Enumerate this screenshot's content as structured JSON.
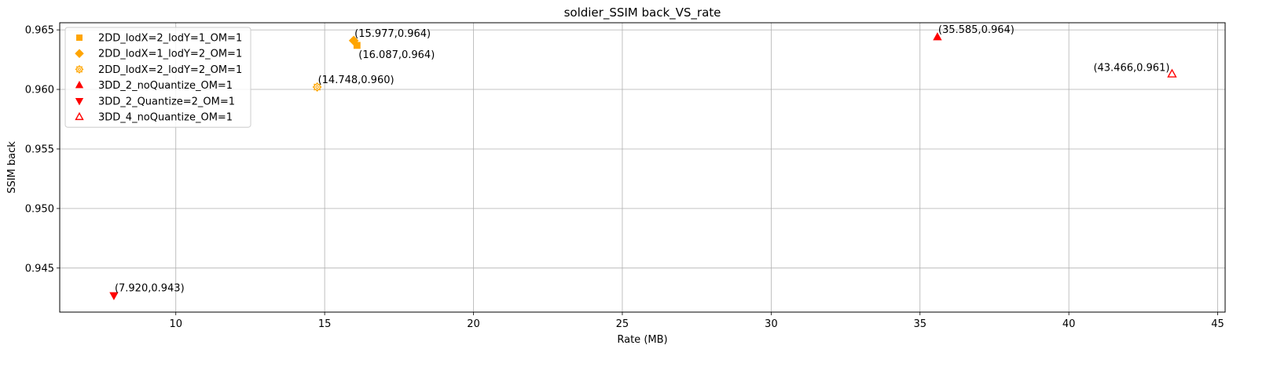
{
  "chart_data": {
    "type": "scatter",
    "title": "soldier_SSIM back_VS_rate",
    "xlabel": "Rate (MB)",
    "ylabel": "SSIM back",
    "xlim": [
      6.1,
      45.25
    ],
    "ylim": [
      0.9413,
      0.9656
    ],
    "xticks": [
      10,
      15,
      20,
      25,
      30,
      35,
      40,
      45
    ],
    "yticks": [
      0.945,
      0.95,
      0.955,
      0.96,
      0.965
    ],
    "ytick_labels": [
      "0.945",
      "0.950",
      "0.955",
      "0.960",
      "0.965"
    ],
    "grid": true,
    "legend_position": "top-left",
    "series": [
      {
        "name": "2DD_lodX=2_lodY=1_OM=1",
        "marker": "square",
        "color": "#FFA500",
        "filled": true,
        "points": [
          {
            "x": 16.087,
            "y": 0.9637,
            "label": "(16.087,0.964)",
            "label_pos": "below-right"
          }
        ]
      },
      {
        "name": "2DD_lodX=1_lodY=2_OM=1",
        "marker": "diamond",
        "color": "#FFA500",
        "filled": true,
        "points": [
          {
            "x": 15.977,
            "y": 0.9641,
            "label": "(15.977,0.964)",
            "label_pos": "above-right"
          }
        ]
      },
      {
        "name": "2DD_lodX=2_lodY=2_OM=1",
        "marker": "gear",
        "color": "#FFA500",
        "filled": false,
        "points": [
          {
            "x": 14.748,
            "y": 0.9602,
            "label": "(14.748,0.960)",
            "label_pos": "above-right"
          }
        ]
      },
      {
        "name": "3DD_2_noQuantize_OM=1",
        "marker": "triangle-up",
        "color": "#FF0000",
        "filled": true,
        "points": [
          {
            "x": 35.585,
            "y": 0.9644,
            "label": "(35.585,0.964)",
            "label_pos": "above-right"
          }
        ]
      },
      {
        "name": "3DD_2_Quantize=2_OM=1",
        "marker": "triangle-down",
        "color": "#FF0000",
        "filled": true,
        "points": [
          {
            "x": 7.92,
            "y": 0.9427,
            "label": "(7.920,0.943)",
            "label_pos": "above-right"
          }
        ]
      },
      {
        "name": "3DD_4_noQuantize_OM=1",
        "marker": "triangle-up",
        "color": "#FF0000",
        "filled": false,
        "points": [
          {
            "x": 43.466,
            "y": 0.9613,
            "label": "(43.466,0.961)",
            "label_pos": "above-left"
          }
        ]
      }
    ]
  }
}
